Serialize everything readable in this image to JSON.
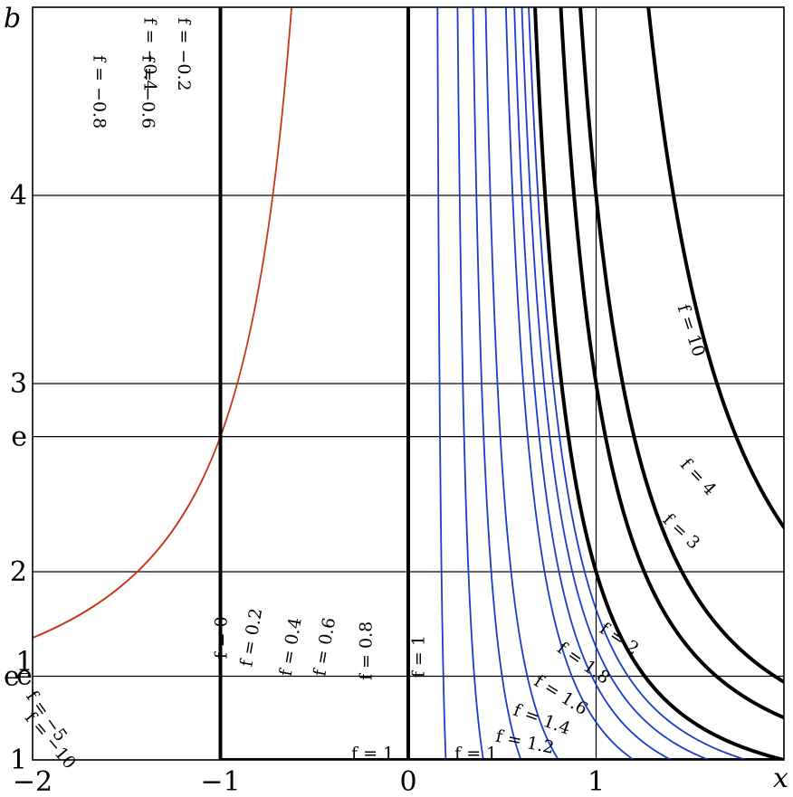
{
  "chart_data": {
    "type": "line",
    "title": "",
    "xlabel": "x",
    "ylabel": "b",
    "xlim": [
      -2,
      2
    ],
    "ylim": [
      1,
      5
    ],
    "x_ticks": [
      {
        "value": -2,
        "label": "−2"
      },
      {
        "value": -1,
        "label": "−1"
      },
      {
        "value": 0,
        "label": "0"
      },
      {
        "value": 1,
        "label": "1"
      }
    ],
    "y_ticks": [
      {
        "value": 1,
        "label": "1"
      },
      {
        "value": 1.4447,
        "label": "e",
        "superscript": "1/e"
      },
      {
        "value": 2,
        "label": "2"
      },
      {
        "value": 2.71828,
        "label": "e"
      },
      {
        "value": 3,
        "label": "3"
      },
      {
        "value": 4,
        "label": "4"
      }
    ],
    "grid": true,
    "colors": {
      "negative": "#c8371a",
      "positive": "#1a3cc8",
      "emphasis": "#000000"
    },
    "relation": "f = x · b^x",
    "series": [
      {
        "f": -10,
        "group": "black"
      },
      {
        "f": -5,
        "group": "black"
      },
      {
        "f": -4,
        "group": "black"
      },
      {
        "f": -3,
        "group": "black"
      },
      {
        "f": -2,
        "group": "black"
      },
      {
        "f": -1.8,
        "group": "red"
      },
      {
        "f": -1.6,
        "group": "red"
      },
      {
        "f": -1.4,
        "group": "red"
      },
      {
        "f": -1.2,
        "group": "red"
      },
      {
        "f": -1,
        "group": "black"
      },
      {
        "f": -0.8,
        "group": "red"
      },
      {
        "f": -0.6,
        "group": "red"
      },
      {
        "f": -0.4,
        "group": "red"
      },
      {
        "f": -0.2,
        "group": "red"
      },
      {
        "f": 0,
        "group": "black"
      },
      {
        "f": 0.2,
        "group": "blue"
      },
      {
        "f": 0.4,
        "group": "blue"
      },
      {
        "f": 0.6,
        "group": "blue"
      },
      {
        "f": 0.8,
        "group": "blue"
      },
      {
        "f": 1,
        "group": "black"
      },
      {
        "f": 1.2,
        "group": "blue"
      },
      {
        "f": 1.4,
        "group": "blue"
      },
      {
        "f": 1.6,
        "group": "blue"
      },
      {
        "f": 1.8,
        "group": "blue"
      },
      {
        "f": 2,
        "group": "black"
      },
      {
        "f": 3,
        "group": "black"
      },
      {
        "f": 4,
        "group": "black"
      },
      {
        "f": 10,
        "group": "black"
      }
    ],
    "annotations": [
      {
        "f": -0.8,
        "text": "f = −0.8",
        "x": -1.65,
        "b": 4.55,
        "rotate": 90
      },
      {
        "f": -0.6,
        "text": "f = −0.6",
        "x": -1.39,
        "b": 4.55,
        "rotate": 90
      },
      {
        "f": -0.4,
        "text": "f = −0.4",
        "x": -1.38,
        "b": 4.75,
        "rotate": 90
      },
      {
        "f": -0.2,
        "text": "f = −0.2",
        "x": -1.2,
        "b": 4.75,
        "rotate": 90
      },
      {
        "f": -5,
        "text": "f = −5",
        "x": -1.93,
        "b": 1.23,
        "rotate": 55
      },
      {
        "f": -10,
        "text": "f = −10",
        "x": -1.91,
        "b": 1.1,
        "rotate": 50
      },
      {
        "f": 0,
        "text": "f = 0",
        "x": -0.99,
        "b": 1.65,
        "rotate": -90
      },
      {
        "f": 0.2,
        "text": "f = 0.2",
        "x": -0.83,
        "b": 1.65,
        "rotate": -80
      },
      {
        "f": 0.4,
        "text": "f = 0.4",
        "x": -0.62,
        "b": 1.6,
        "rotate": -80
      },
      {
        "f": 0.6,
        "text": "f = 0.6",
        "x": -0.44,
        "b": 1.6,
        "rotate": -80
      },
      {
        "f": 0.8,
        "text": "f = 0.8",
        "x": -0.22,
        "b": 1.58,
        "rotate": -90
      },
      {
        "f": 1,
        "text": "f = 1",
        "x": 0.06,
        "b": 1.55,
        "rotate": -90
      },
      {
        "f": 1,
        "text": "f = 1",
        "x": -0.19,
        "b": 1.03,
        "rotate": 0
      },
      {
        "f": 1,
        "text": "f = 1",
        "x": 0.36,
        "b": 1.03,
        "rotate": 0
      },
      {
        "f": 1.2,
        "text": "f = 1.2",
        "x": 0.62,
        "b": 1.09,
        "rotate": 12
      },
      {
        "f": 1.4,
        "text": "f = 1.4",
        "x": 0.71,
        "b": 1.21,
        "rotate": 20
      },
      {
        "f": 1.6,
        "text": "f = 1.6",
        "x": 0.81,
        "b": 1.34,
        "rotate": 32
      },
      {
        "f": 1.8,
        "text": "f = 1.8",
        "x": 0.93,
        "b": 1.51,
        "rotate": 35
      },
      {
        "f": 2,
        "text": "f = 2",
        "x": 1.12,
        "b": 1.64,
        "rotate": 34
      },
      {
        "f": 3,
        "text": "f = 3",
        "x": 1.45,
        "b": 2.21,
        "rotate": 43
      },
      {
        "f": 4,
        "text": "f = 4",
        "x": 1.54,
        "b": 2.5,
        "rotate": 47
      },
      {
        "f": 10,
        "text": "f = 10",
        "x": 1.5,
        "b": 3.28,
        "rotate": 72
      }
    ]
  }
}
